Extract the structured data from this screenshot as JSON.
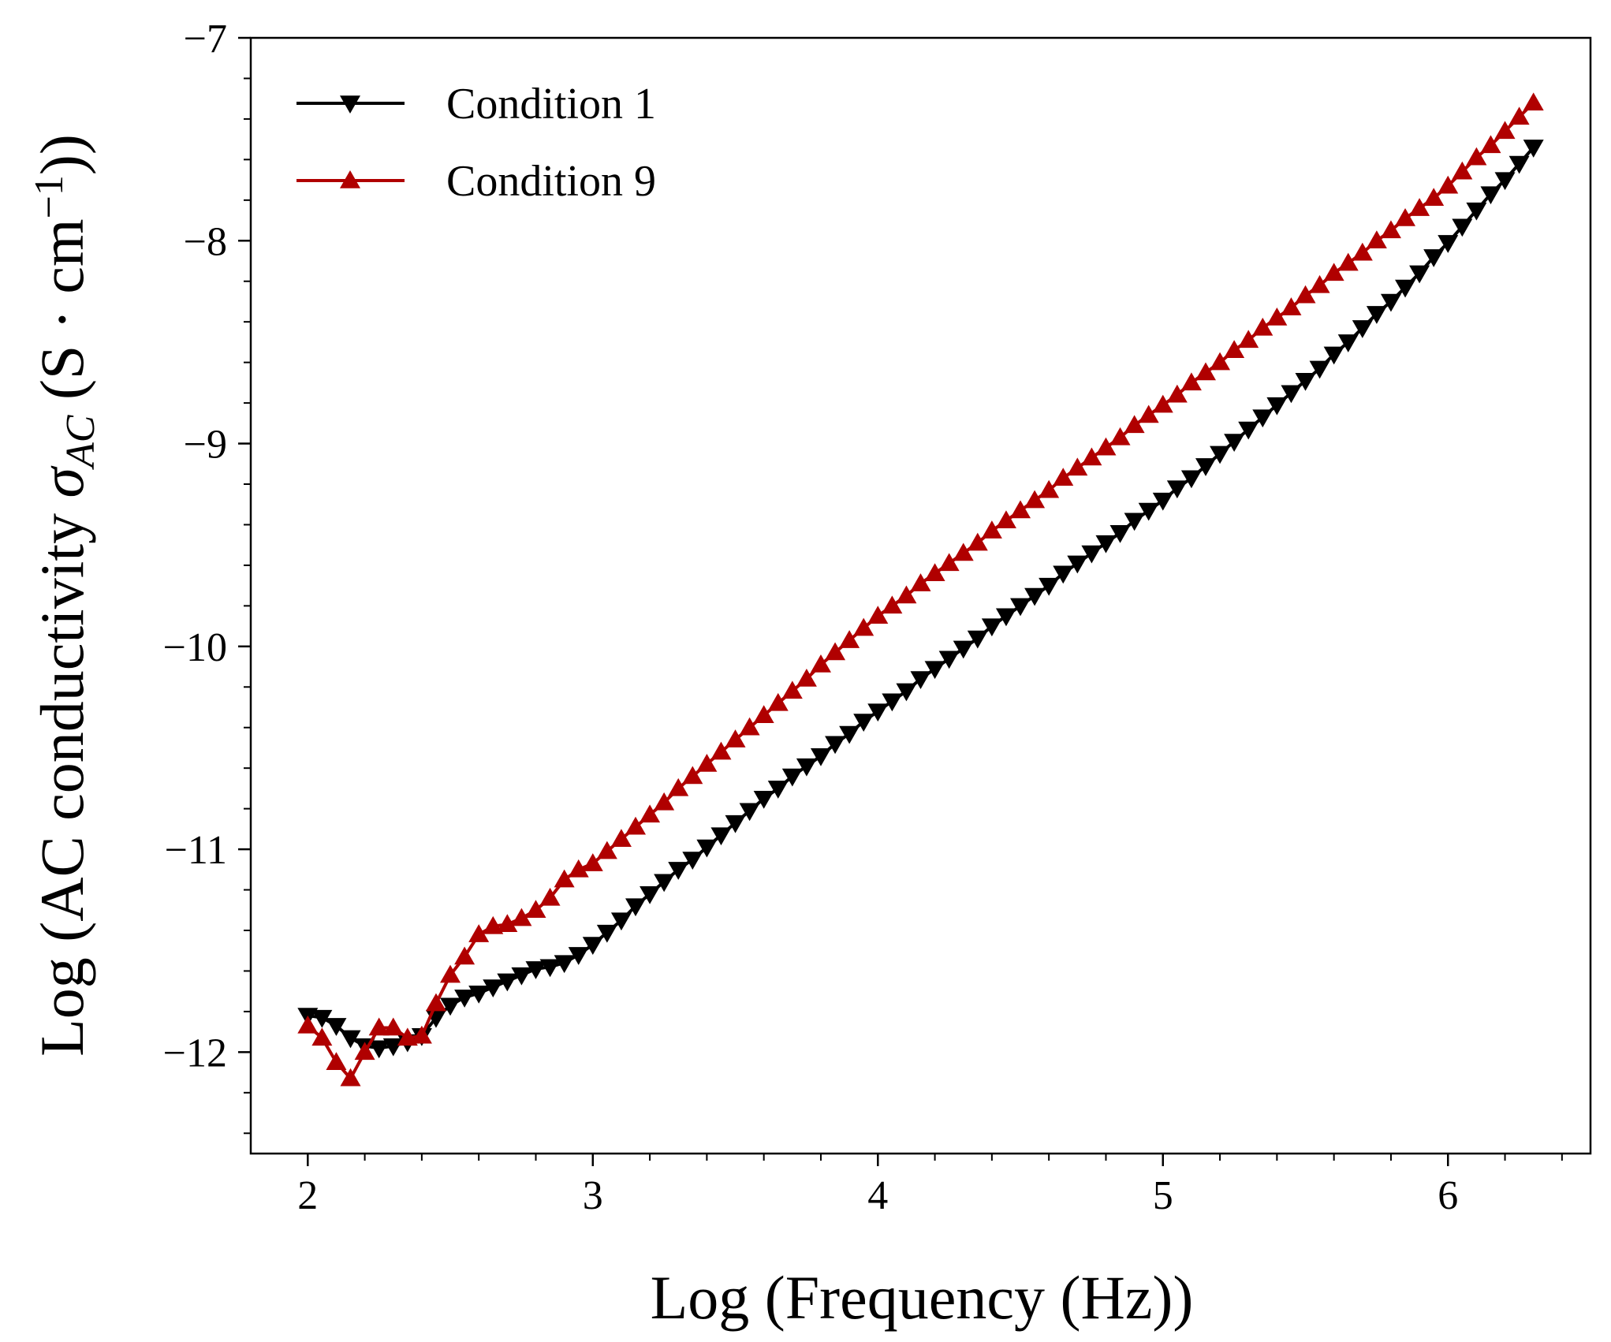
{
  "chart_data": {
    "type": "line",
    "xlabel": "Log (Frequency (Hz))",
    "ylabel": [
      "Log (AC conductivity ",
      "σ",
      "AC",
      " (S · cm",
      "−1",
      "))"
    ],
    "x": [
      2.0,
      2.05,
      2.1,
      2.15,
      2.2,
      2.25,
      2.3,
      2.35,
      2.4,
      2.45,
      2.5,
      2.55,
      2.6,
      2.65,
      2.7,
      2.75,
      2.8,
      2.85,
      2.9,
      2.95,
      3.0,
      3.05,
      3.1,
      3.15,
      3.2,
      3.25,
      3.3,
      3.35,
      3.4,
      3.45,
      3.5,
      3.55,
      3.6,
      3.65,
      3.7,
      3.75,
      3.8,
      3.85,
      3.9,
      3.95,
      4.0,
      4.05,
      4.1,
      4.15,
      4.2,
      4.25,
      4.3,
      4.35,
      4.4,
      4.45,
      4.5,
      4.55,
      4.6,
      4.65,
      4.7,
      4.75,
      4.8,
      4.85,
      4.9,
      4.95,
      5.0,
      5.05,
      5.1,
      5.15,
      5.2,
      5.25,
      5.3,
      5.35,
      5.4,
      5.45,
      5.5,
      5.55,
      5.6,
      5.65,
      5.7,
      5.75,
      5.8,
      5.85,
      5.9,
      5.95,
      6.0,
      6.05,
      6.1,
      6.15,
      6.2,
      6.25,
      6.3
    ],
    "series": [
      {
        "name": "Condition 1",
        "color": "#000000",
        "marker": "down",
        "values": [
          -11.82,
          -11.83,
          -11.87,
          -11.93,
          -11.97,
          -11.98,
          -11.97,
          -11.95,
          -11.92,
          -11.83,
          -11.77,
          -11.73,
          -11.71,
          -11.68,
          -11.65,
          -11.62,
          -11.59,
          -11.58,
          -11.56,
          -11.52,
          -11.47,
          -11.41,
          -11.35,
          -11.28,
          -11.22,
          -11.16,
          -11.1,
          -11.05,
          -10.99,
          -10.93,
          -10.87,
          -10.81,
          -10.75,
          -10.7,
          -10.64,
          -10.59,
          -10.54,
          -10.48,
          -10.43,
          -10.37,
          -10.32,
          -10.27,
          -10.22,
          -10.16,
          -10.11,
          -10.06,
          -10.01,
          -9.96,
          -9.9,
          -9.85,
          -9.8,
          -9.75,
          -9.7,
          -9.64,
          -9.59,
          -9.54,
          -9.49,
          -9.44,
          -9.38,
          -9.33,
          -9.28,
          -9.22,
          -9.17,
          -9.11,
          -9.05,
          -8.99,
          -8.93,
          -8.87,
          -8.81,
          -8.75,
          -8.69,
          -8.63,
          -8.56,
          -8.5,
          -8.43,
          -8.36,
          -8.3,
          -8.23,
          -8.16,
          -8.08,
          -8.01,
          -7.93,
          -7.85,
          -7.77,
          -7.7,
          -7.62,
          -7.54
        ]
      },
      {
        "name": "Condition 9",
        "color": "#b00000",
        "marker": "up",
        "values": [
          -11.87,
          -11.93,
          -12.05,
          -12.13,
          -12.0,
          -11.88,
          -11.88,
          -11.93,
          -11.92,
          -11.76,
          -11.62,
          -11.53,
          -11.42,
          -11.38,
          -11.37,
          -11.34,
          -11.3,
          -11.24,
          -11.15,
          -11.1,
          -11.07,
          -11.01,
          -10.95,
          -10.89,
          -10.83,
          -10.77,
          -10.7,
          -10.64,
          -10.58,
          -10.52,
          -10.46,
          -10.4,
          -10.34,
          -10.28,
          -10.22,
          -10.16,
          -10.09,
          -10.03,
          -9.97,
          -9.91,
          -9.85,
          -9.8,
          -9.75,
          -9.69,
          -9.64,
          -9.59,
          -9.54,
          -9.49,
          -9.43,
          -9.38,
          -9.33,
          -9.28,
          -9.23,
          -9.17,
          -9.12,
          -9.07,
          -9.02,
          -8.97,
          -8.91,
          -8.86,
          -8.81,
          -8.76,
          -8.7,
          -8.65,
          -8.6,
          -8.54,
          -8.49,
          -8.43,
          -8.38,
          -8.33,
          -8.27,
          -8.22,
          -8.16,
          -8.11,
          -8.06,
          -8.0,
          -7.95,
          -7.89,
          -7.84,
          -7.79,
          -7.73,
          -7.66,
          -7.59,
          -7.53,
          -7.46,
          -7.39,
          -7.32
        ]
      }
    ],
    "xlim": [
      1.8,
      6.5
    ],
    "ylim": [
      -12.5,
      -7
    ],
    "xticks": [
      2,
      3,
      4,
      5,
      6
    ],
    "yticks": [
      {
        "value": -7,
        "label": "−7"
      },
      {
        "value": -8,
        "label": "−8"
      },
      {
        "value": -9,
        "label": "−9"
      },
      {
        "value": -10,
        "label": "−10"
      },
      {
        "value": -11,
        "label": "−11"
      },
      {
        "value": -12,
        "label": "−12"
      }
    ],
    "xminorticks": [
      2.2,
      2.4,
      2.6,
      2.8,
      3.2,
      3.4,
      3.6,
      3.8,
      4.2,
      4.4,
      4.6,
      4.8,
      5.2,
      5.4,
      5.6,
      5.8,
      6.2,
      6.4
    ],
    "yminorticks": [
      -7.2,
      -7.4,
      -7.6,
      -7.8,
      -8.2,
      -8.4,
      -8.6,
      -8.8,
      -9.2,
      -9.4,
      -9.6,
      -9.8,
      -10.2,
      -10.4,
      -10.6,
      -10.8,
      -11.2,
      -11.4,
      -11.6,
      -11.8,
      -12.2,
      -12.4
    ],
    "legend": "upper left",
    "grid": false
  }
}
